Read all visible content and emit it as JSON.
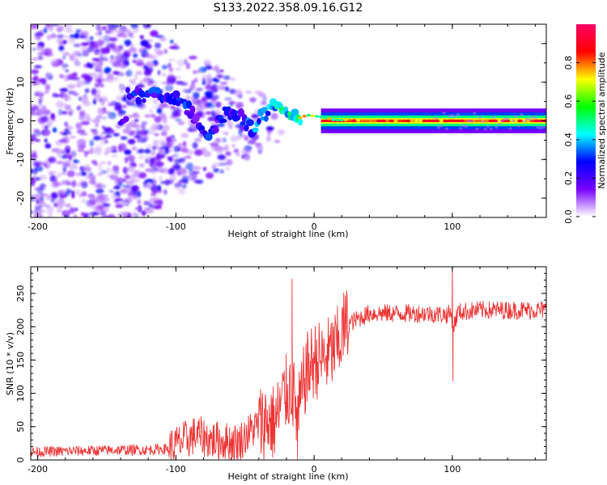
{
  "title": "S133.2022.358.09.16.G12",
  "chart_data": [
    {
      "type": "heatmap",
      "title": "S133.2022.358.09.16.G12",
      "xlabel": "Height of straight line (km)",
      "ylabel": "Frequency (Hz)",
      "xlim": [
        -205,
        168
      ],
      "ylim": [
        -25,
        25
      ],
      "xticks": [
        -200,
        -100,
        0,
        100
      ],
      "yticks": [
        -20,
        -10,
        0,
        10,
        20
      ],
      "colorbar": {
        "label": "Normalized spectral amplitude",
        "range": [
          0,
          1
        ],
        "ticks": [
          0.0,
          0.2,
          0.4,
          0.6,
          0.8
        ],
        "tick_labels": [
          "0.0",
          "0.2",
          "0.4",
          "0.6",
          "0.8"
        ],
        "colormap": [
          "#ffffff",
          "#7700ff",
          "#0000ff",
          "#00ffff",
          "#00ff00",
          "#ffff00",
          "#ff0000",
          "#ff0066"
        ]
      },
      "ridge": [
        {
          "x": -135,
          "freq": 6.5
        },
        {
          "x": -110,
          "freq": 7
        },
        {
          "x": -95,
          "freq": 5
        },
        {
          "x": -85,
          "freq": 0
        },
        {
          "x": -75,
          "freq": -4
        },
        {
          "x": -65,
          "freq": 2
        },
        {
          "x": -55,
          "freq": 2
        },
        {
          "x": -45,
          "freq": -2
        },
        {
          "x": -38,
          "freq": 1
        },
        {
          "x": -28,
          "freq": 4
        },
        {
          "x": -20,
          "freq": 2
        },
        {
          "x": -12,
          "freq": 0.5
        },
        {
          "x": -5,
          "freq": 1.5
        },
        {
          "x": 5,
          "freq": 1
        },
        {
          "x": 15,
          "freq": 0.2
        },
        {
          "x": 40,
          "freq": 0
        },
        {
          "x": 100,
          "freq": 0
        },
        {
          "x": 168,
          "freq": 0
        }
      ],
      "grid": false
    },
    {
      "type": "line",
      "xlabel": "Height of straight line (km)",
      "ylabel": "SNR (10 * v/v)",
      "xlim": [
        -205,
        168
      ],
      "ylim": [
        0,
        290
      ],
      "xticks": [
        -200,
        -100,
        0,
        100
      ],
      "yticks": [
        0,
        50,
        100,
        150,
        200,
        250
      ],
      "series": [
        {
          "color": "#ee3333",
          "x": [
            -205,
            -180,
            -160,
            -140,
            -120,
            -105,
            -95,
            -85,
            -75,
            -65,
            -55,
            -45,
            -35,
            -28,
            -22,
            -16,
            -12,
            -6,
            0,
            6,
            12,
            18,
            22,
            30,
            40,
            60,
            80,
            95,
            99,
            101,
            104,
            120,
            140,
            168
          ],
          "values": [
            12,
            13,
            14,
            15,
            15,
            17,
            28,
            38,
            30,
            28,
            26,
            45,
            60,
            55,
            95,
            110,
            60,
            130,
            150,
            150,
            160,
            175,
            200,
            210,
            220,
            220,
            220,
            218,
            220,
            200,
            222,
            225,
            225,
            225
          ]
        }
      ],
      "spikes": [
        {
          "x": -16,
          "value": 272
        },
        {
          "x": -12,
          "value": 0
        },
        {
          "x": 100,
          "value": 290
        },
        {
          "x": 100.5,
          "value": 118
        }
      ],
      "grid": false
    }
  ]
}
